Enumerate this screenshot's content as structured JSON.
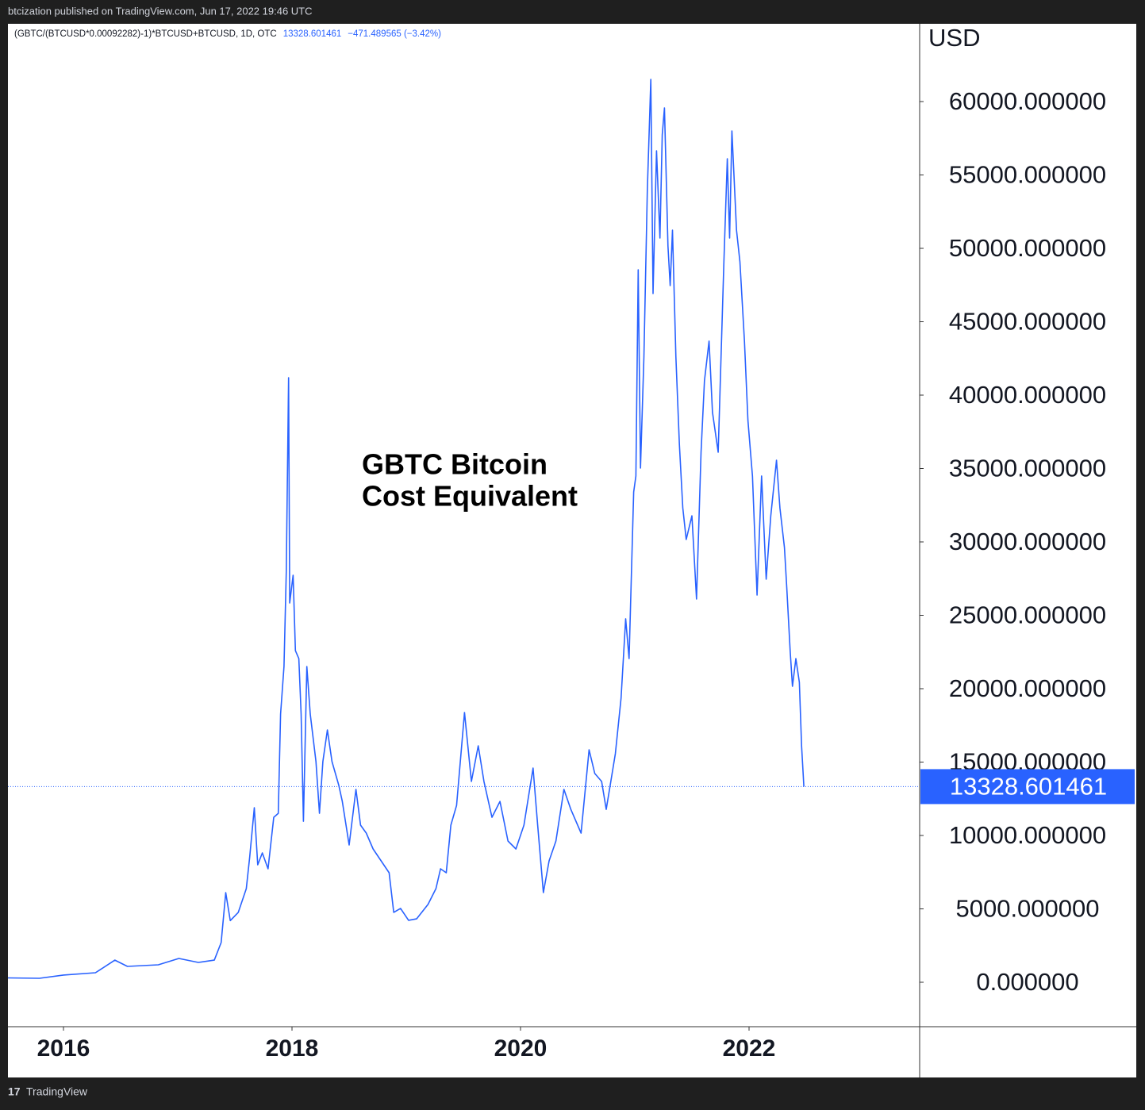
{
  "publisher": "btcization published on TradingView.com, Jun 17, 2022 19:46 UTC",
  "footer": "TradingView",
  "chart_data": {
    "type": "line",
    "legend_header": "(GBTC/(BTCUSD*0.00092282)-1)*BTCUSD+BTCUSD, 1D, OTC",
    "header_change": "−471.489565 (−3.42%)",
    "annotation": [
      "GBTC Bitcoin",
      "Cost Equivalent"
    ],
    "y_unit": "USD",
    "price_line": {
      "value": 13328.601461,
      "label": "13328.601461"
    },
    "xlim": [
      2015.514,
      2023.493
    ],
    "xticks": [
      2016,
      2018,
      2020,
      2022
    ],
    "ylim": [
      -3027,
      65297
    ],
    "yticks": [
      {
        "value": 0,
        "label": "0.000000"
      },
      {
        "value": 5000,
        "label": "5000.000000"
      },
      {
        "value": 10000,
        "label": "10000.000000"
      },
      {
        "value": 15000,
        "label": "15000.000000"
      },
      {
        "value": 20000,
        "label": "20000.000000"
      },
      {
        "value": 25000,
        "label": "25000.000000"
      },
      {
        "value": 30000,
        "label": "30000.000000"
      },
      {
        "value": 35000,
        "label": "35000.000000"
      },
      {
        "value": 40000,
        "label": "40000.000000"
      },
      {
        "value": 45000,
        "label": "45000.000000"
      },
      {
        "value": 50000,
        "label": "50000.000000"
      },
      {
        "value": 55000,
        "label": "55000.000000"
      },
      {
        "value": 60000,
        "label": "60000.000000"
      }
    ],
    "grid": false,
    "series": [
      {
        "name": "GBTC Bitcoin Cost Equivalent",
        "color": "#2962ff",
        "x": [
          2015.514,
          2015.79,
          2016.0,
          2016.28,
          2016.45,
          2016.56,
          2016.83,
          2017.01,
          2017.18,
          2017.32,
          2017.38,
          2017.42,
          2017.46,
          2017.53,
          2017.6,
          2017.63,
          2017.67,
          2017.7,
          2017.74,
          2017.79,
          2017.84,
          2017.88,
          2017.9,
          2017.93,
          2017.95,
          2017.97,
          2017.98,
          2018.01,
          2018.03,
          2018.06,
          2018.08,
          2018.1,
          2018.13,
          2018.16,
          2018.21,
          2018.24,
          2018.27,
          2018.31,
          2018.35,
          2018.41,
          2018.44,
          2018.5,
          2018.56,
          2018.6,
          2018.65,
          2018.71,
          2018.78,
          2018.85,
          2018.89,
          2018.95,
          2019.02,
          2019.09,
          2019.19,
          2019.26,
          2019.3,
          2019.35,
          2019.39,
          2019.44,
          2019.51,
          2019.57,
          2019.63,
          2019.68,
          2019.75,
          2019.82,
          2019.89,
          2019.96,
          2020.03,
          2020.11,
          2020.15,
          2020.2,
          2020.25,
          2020.31,
          2020.38,
          2020.44,
          2020.53,
          2020.6,
          2020.65,
          2020.71,
          2020.75,
          2020.79,
          2020.83,
          2020.88,
          2020.92,
          2020.95,
          2020.99,
          2021.01,
          2021.03,
          2021.05,
          2021.08,
          2021.11,
          2021.14,
          2021.16,
          2021.19,
          2021.22,
          2021.24,
          2021.26,
          2021.29,
          2021.31,
          2021.33,
          2021.36,
          2021.39,
          2021.42,
          2021.45,
          2021.5,
          2021.54,
          2021.58,
          2021.61,
          2021.65,
          2021.68,
          2021.73,
          2021.78,
          2021.81,
          2021.83,
          2021.85,
          2021.89,
          2021.92,
          2021.96,
          2021.99,
          2022.03,
          2022.07,
          2022.11,
          2022.15,
          2022.19,
          2022.24,
          2022.27,
          2022.31,
          2022.33,
          2022.36,
          2022.38,
          2022.41,
          2022.44,
          2022.46,
          2022.48
        ],
        "values": [
          300,
          270,
          490,
          650,
          1510,
          1080,
          1190,
          1620,
          1350,
          1510,
          2700,
          6100,
          4200,
          4760,
          6380,
          8540,
          11890,
          8000,
          8810,
          7730,
          11240,
          11510,
          18270,
          21510,
          28000,
          41190,
          25840,
          27730,
          22590,
          22050,
          18270,
          10970,
          21510,
          18270,
          15030,
          11510,
          15030,
          17190,
          15030,
          13410,
          12320,
          9350,
          13140,
          10700,
          10160,
          9080,
          8270,
          7460,
          4760,
          5030,
          4220,
          4320,
          5300,
          6380,
          7730,
          7460,
          10700,
          12050,
          18380,
          13680,
          16110,
          13680,
          11240,
          12320,
          9620,
          9080,
          10700,
          14590,
          10700,
          6110,
          8270,
          9620,
          13140,
          11780,
          10160,
          15840,
          14220,
          13680,
          11780,
          13680,
          15570,
          19350,
          24760,
          22050,
          33400,
          34490,
          48540,
          35030,
          42600,
          53950,
          61510,
          46920,
          56650,
          50700,
          57730,
          59570,
          50160,
          47460,
          51240,
          42600,
          36650,
          32320,
          30160,
          31780,
          26110,
          36110,
          40980,
          43680,
          38840,
          36110,
          49080,
          56110,
          50700,
          58000,
          51240,
          49080,
          43680,
          38270,
          34490,
          26380,
          34490,
          27460,
          31780,
          35570,
          32320,
          29620,
          26920,
          22590,
          20160,
          22050,
          20430,
          16110,
          13328.601461
        ]
      }
    ]
  }
}
